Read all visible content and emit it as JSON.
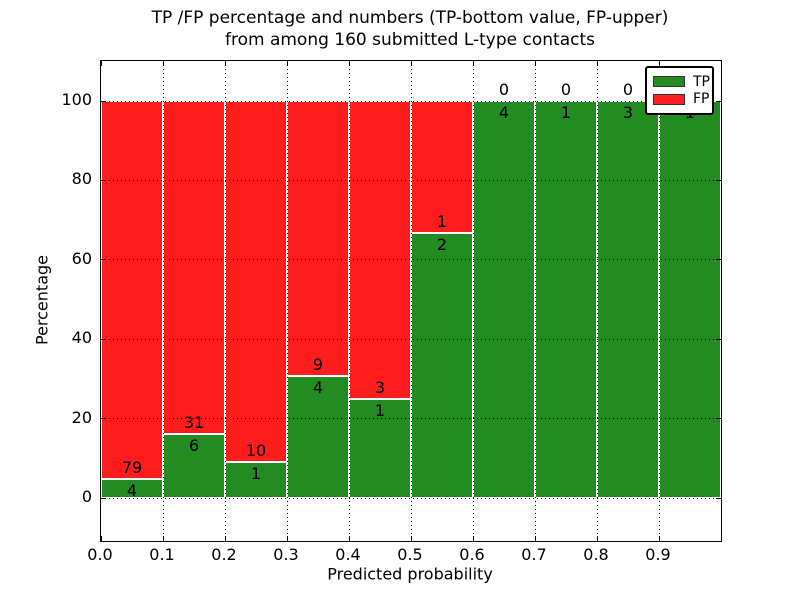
{
  "chart_data": {
    "type": "bar",
    "subtype": "stacked-percentage",
    "title_line1": "TP /FP percentage and numbers (TP-bottom value, FP-upper)",
    "title_line2": "from among 160 submitted L-type contacts",
    "xlabel": "Predicted probability",
    "ylabel": "Percentage",
    "x_tick_labels": [
      "0.0",
      "0.1",
      "0.2",
      "0.3",
      "0.4",
      "0.5",
      "0.6",
      "0.7",
      "0.8",
      "0.9"
    ],
    "y_ticks": [
      0,
      20,
      40,
      60,
      80,
      100
    ],
    "xlim": [
      0.0,
      1.0
    ],
    "ylim_ticks": [
      0,
      100
    ],
    "grid": "dotted black, drawn over bars",
    "legend_position": "upper right",
    "legend": [
      {
        "label": "TP",
        "color": "#228b22"
      },
      {
        "label": "FP",
        "color": "#ff1c1c"
      }
    ],
    "colors": {
      "tp": "#228b22",
      "fp": "#ff1c1c",
      "bar_edge": "#ffffff",
      "axes": "#000000"
    },
    "bins": [
      {
        "x0": 0.0,
        "x1": 0.1,
        "tp": 4,
        "fp": 79
      },
      {
        "x0": 0.1,
        "x1": 0.2,
        "tp": 6,
        "fp": 31
      },
      {
        "x0": 0.2,
        "x1": 0.3,
        "tp": 1,
        "fp": 10
      },
      {
        "x0": 0.3,
        "x1": 0.4,
        "tp": 4,
        "fp": 9
      },
      {
        "x0": 0.4,
        "x1": 0.5,
        "tp": 1,
        "fp": 3
      },
      {
        "x0": 0.5,
        "x1": 0.6,
        "tp": 2,
        "fp": 1
      },
      {
        "x0": 0.6,
        "x1": 0.7,
        "tp": 4,
        "fp": 0
      },
      {
        "x0": 0.7,
        "x1": 0.8,
        "tp": 1,
        "fp": 0
      },
      {
        "x0": 0.8,
        "x1": 0.9,
        "tp": 3,
        "fp": 0
      },
      {
        "x0": 0.9,
        "x1": 1.0,
        "tp": 1,
        "fp": 0
      }
    ],
    "annotation_note": "FP count shown above TP/FP boundary, TP count below; last bin labels partially hidden by legend"
  }
}
